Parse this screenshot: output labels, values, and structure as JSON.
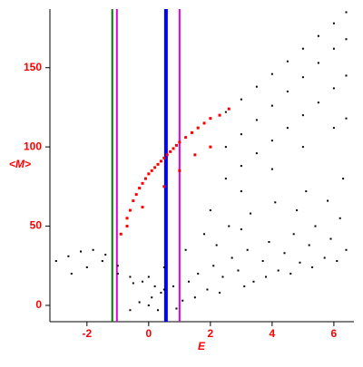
{
  "chart_data": {
    "type": "scatter",
    "xlabel": "E",
    "ylabel": "<M>",
    "xlim": [
      -3.2,
      6.65
    ],
    "ylim": [
      -10.3,
      187
    ],
    "xticks": [
      -2,
      0,
      2,
      4,
      6
    ],
    "yticks": [
      0,
      50,
      100,
      150
    ],
    "label_color": "#ff0000",
    "vlines": [
      {
        "x": -1.18,
        "color": "#007700"
      },
      {
        "x": -1.03,
        "color": "#dd00dd"
      },
      {
        "x": 1.0,
        "color": "#dd00dd"
      },
      {
        "x": 0.56,
        "color": "#0000ff"
      }
    ],
    "series": [
      {
        "color": "#000000",
        "x": [
          2.5,
          3,
          3.5,
          4,
          4.5,
          5,
          5.5,
          6,
          6.4,
          2.5,
          3,
          3.5,
          4,
          4.5,
          5,
          5.5,
          6,
          6.4,
          2.5,
          3,
          3.5,
          4,
          4.5,
          5,
          5.5,
          6,
          6.4,
          2,
          3,
          4,
          5,
          6,
          6.4,
          -3,
          -2.6,
          -2.2,
          -1.8,
          -1.4,
          -1.0,
          -0.6,
          -0.2,
          0.2,
          0.5,
          -2.5,
          -2,
          -1.5,
          -1,
          -0.5,
          0,
          0.5,
          0.1,
          0.4,
          0.8,
          1.1,
          1.3,
          1.6,
          1.9,
          2.1,
          2.4,
          2.7,
          2.9,
          3.2,
          3.4,
          3.7,
          3.9,
          4.2,
          4.4,
          4.7,
          4.9,
          5.2,
          5.4,
          5.7,
          5.9,
          6.2,
          6.4,
          0.3,
          0.9,
          1.5,
          2.3,
          3.1,
          3.8,
          4.6,
          5.3,
          6.1,
          1.2,
          1.8,
          2.6,
          3.3,
          4.1,
          5.1,
          6.3,
          2.2,
          3.0,
          4.8,
          5.8,
          -0.6,
          -0.3,
          0
        ],
        "y": [
          122,
          130,
          138,
          146,
          154,
          162,
          170,
          178,
          185,
          100,
          108,
          117,
          126,
          135,
          144,
          153,
          162,
          168,
          80,
          88,
          96,
          104,
          112,
          120,
          128,
          137,
          145,
          60,
          72,
          86,
          100,
          112,
          118,
          28,
          31,
          34,
          35,
          32,
          25,
          18,
          15,
          12,
          10,
          20,
          24,
          28,
          20,
          14,
          18,
          24,
          5,
          8,
          12,
          3,
          15,
          20,
          10,
          25,
          18,
          30,
          22,
          35,
          15,
          28,
          40,
          22,
          33,
          45,
          27,
          38,
          50,
          30,
          42,
          55,
          35,
          -3,
          -2,
          5,
          8,
          12,
          18,
          20,
          24,
          28,
          35,
          45,
          50,
          58,
          65,
          72,
          80,
          38,
          48,
          60,
          66,
          -3,
          2,
          0
        ]
      },
      {
        "color": "#ff0000",
        "x": [
          -0.9,
          -0.7,
          -0.6,
          -0.5,
          -0.4,
          -0.3,
          -0.2,
          -0.1,
          0,
          0.1,
          0.2,
          0.3,
          0.4,
          0.5,
          0.6,
          0.7,
          0.8,
          0.9,
          1.0,
          1.2,
          1.4,
          1.6,
          1.8,
          2.0,
          2.3,
          2.6,
          0.5,
          1.0,
          1.5,
          2.0,
          -0.7,
          -0.2
        ],
        "y": [
          45,
          55,
          60,
          66,
          70,
          74,
          77,
          80,
          83,
          85,
          87,
          89,
          91,
          93,
          95,
          97,
          99,
          101,
          103,
          106,
          109,
          112,
          115,
          118,
          120,
          124,
          75,
          85,
          95,
          100,
          50,
          62
        ]
      }
    ]
  }
}
